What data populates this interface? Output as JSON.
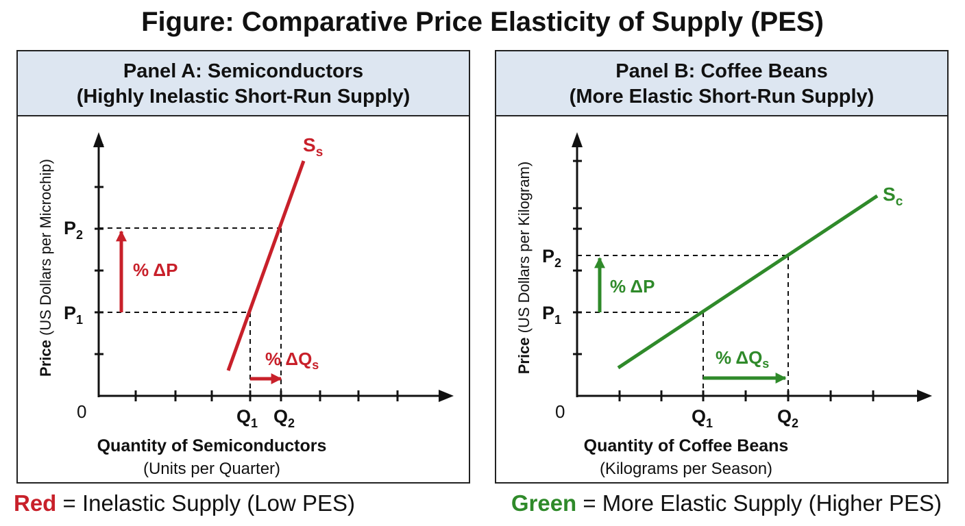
{
  "figure_title": "Figure: Comparative Price Elasticity of Supply (PES)",
  "colors": {
    "red": "#c8202a",
    "green": "#2f8a2a",
    "header_bg": "#dde6f1",
    "axis": "#111111"
  },
  "panel_a": {
    "title_line1": "Panel A: Semiconductors",
    "title_line2": "(Highly Inelastic Short-Run Supply)",
    "y_axis_label_bold": "Price",
    "y_axis_label_rest": " (US Dollars per Microchip)",
    "x_axis_label_bold": "Quantity of Semiconductors",
    "x_axis_label_rest": "(Units per Quarter)",
    "origin_label": "0",
    "p1": "P",
    "p1_sub": "1",
    "p2": "P",
    "p2_sub": "2",
    "q1": "Q",
    "q1_sub": "1",
    "q2": "Q",
    "q2_sub": "2",
    "curve_label": "S",
    "curve_label_sub": "s",
    "delta_p_label": "% ΔP",
    "delta_q_label": "% ΔQ",
    "delta_q_sub": "s"
  },
  "panel_b": {
    "title_line1": "Panel B: Coffee Beans",
    "title_line2": "(More Elastic Short-Run Supply)",
    "y_axis_label_bold": "Price",
    "y_axis_label_rest": " (US Dollars per Kilogram)",
    "x_axis_label_bold": "Quantity of Coffee Beans",
    "x_axis_label_rest": "(Kilograms per Season)",
    "origin_label": "0",
    "p1": "P",
    "p1_sub": "1",
    "p2": "P",
    "p2_sub": "2",
    "q1": "Q",
    "q1_sub": "1",
    "q2": "Q",
    "q2_sub": "2",
    "curve_label": "S",
    "curve_label_sub": "c",
    "delta_p_label": "% ΔP",
    "delta_q_label": "% ΔQ",
    "delta_q_sub": "s"
  },
  "legend": {
    "left_key": "Red",
    "left_text": " = Inelastic Supply (Low PES)",
    "right_key": "Green",
    "right_text": " = More Elastic Supply (Higher PES)"
  }
}
